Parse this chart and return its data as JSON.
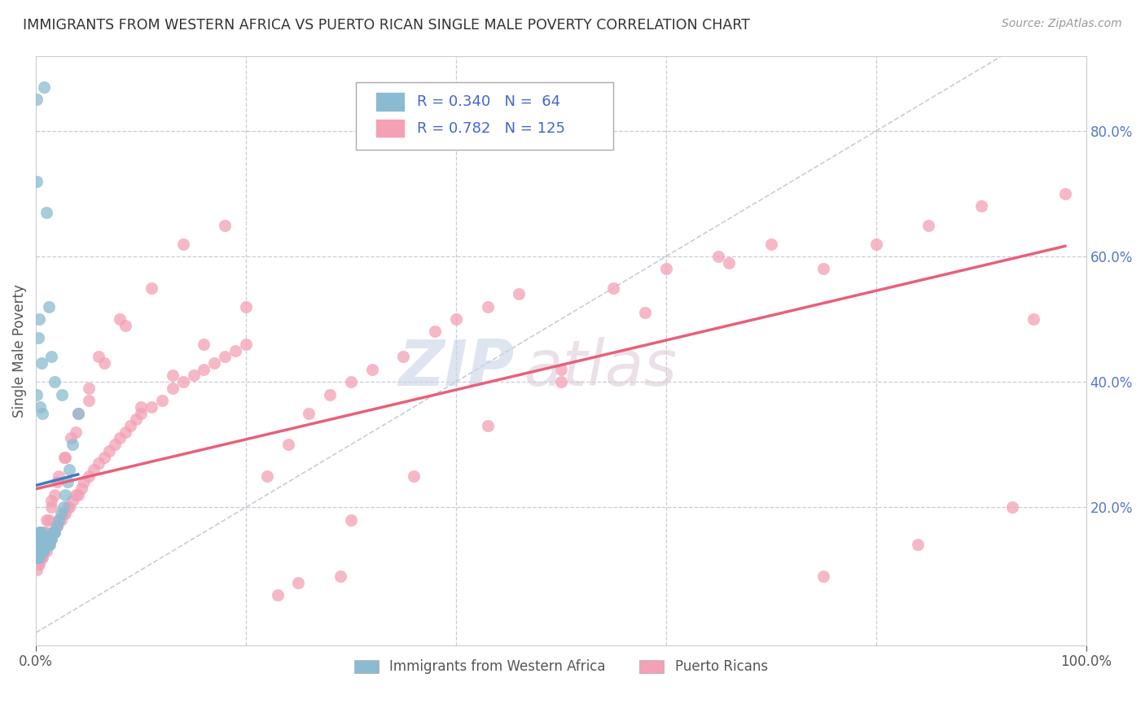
{
  "title": "IMMIGRANTS FROM WESTERN AFRICA VS PUERTO RICAN SINGLE MALE POVERTY CORRELATION CHART",
  "source": "Source: ZipAtlas.com",
  "ylabel": "Single Male Poverty",
  "xlim": [
    0,
    1.0
  ],
  "ylim": [
    -0.02,
    0.92
  ],
  "xticks": [
    0.0,
    1.0
  ],
  "xticklabels": [
    "0.0%",
    "100.0%"
  ],
  "ytick_positions": [
    0.2,
    0.4,
    0.6,
    0.8
  ],
  "ytick_labels": [
    "20.0%",
    "40.0%",
    "60.0%",
    "80.0%"
  ],
  "legend_line1": "R = 0.340   N =  64",
  "legend_line2": "R = 0.782   N = 125",
  "color_blue": "#8abcd1",
  "color_pink": "#f4a0b5",
  "color_blue_line": "#3a7fbf",
  "color_pink_line": "#e8607a",
  "color_diag": "#b0b8c8",
  "color_grid": "#c8cdd8",
  "background_color": "#ffffff",
  "watermark_zip_color": "#c8d4e8",
  "watermark_atlas_color": "#dcc8d4",
  "title_color": "#333333",
  "source_color": "#999999",
  "yaxis_label_color": "#555555",
  "ytick_color": "#5577cc",
  "xtick_color": "#555555",
  "blue_x": [
    0.001,
    0.001,
    0.001,
    0.002,
    0.002,
    0.002,
    0.002,
    0.003,
    0.003,
    0.003,
    0.003,
    0.003,
    0.004,
    0.004,
    0.004,
    0.004,
    0.005,
    0.005,
    0.005,
    0.005,
    0.006,
    0.006,
    0.006,
    0.007,
    0.007,
    0.007,
    0.008,
    0.008,
    0.009,
    0.009,
    0.01,
    0.01,
    0.011,
    0.012,
    0.012,
    0.013,
    0.014,
    0.015,
    0.016,
    0.017,
    0.018,
    0.02,
    0.022,
    0.024,
    0.026,
    0.028,
    0.03,
    0.032,
    0.035,
    0.04,
    0.001,
    0.002,
    0.003,
    0.004,
    0.005,
    0.006,
    0.008,
    0.01,
    0.012,
    0.015,
    0.018,
    0.025,
    0.001,
    0.001
  ],
  "blue_y": [
    0.12,
    0.13,
    0.14,
    0.12,
    0.13,
    0.14,
    0.15,
    0.12,
    0.13,
    0.14,
    0.15,
    0.16,
    0.13,
    0.14,
    0.15,
    0.16,
    0.13,
    0.14,
    0.15,
    0.16,
    0.13,
    0.14,
    0.15,
    0.13,
    0.14,
    0.15,
    0.14,
    0.15,
    0.14,
    0.15,
    0.14,
    0.15,
    0.15,
    0.14,
    0.15,
    0.14,
    0.15,
    0.15,
    0.16,
    0.16,
    0.16,
    0.17,
    0.18,
    0.19,
    0.2,
    0.22,
    0.24,
    0.26,
    0.3,
    0.35,
    0.38,
    0.47,
    0.5,
    0.36,
    0.43,
    0.35,
    0.87,
    0.67,
    0.52,
    0.44,
    0.4,
    0.38,
    0.85,
    0.72
  ],
  "pink_x": [
    0.001,
    0.001,
    0.002,
    0.002,
    0.003,
    0.003,
    0.004,
    0.004,
    0.005,
    0.005,
    0.006,
    0.006,
    0.007,
    0.008,
    0.008,
    0.009,
    0.01,
    0.01,
    0.011,
    0.012,
    0.013,
    0.014,
    0.015,
    0.016,
    0.017,
    0.018,
    0.019,
    0.02,
    0.022,
    0.024,
    0.026,
    0.028,
    0.03,
    0.032,
    0.035,
    0.038,
    0.04,
    0.043,
    0.046,
    0.05,
    0.055,
    0.06,
    0.065,
    0.07,
    0.075,
    0.08,
    0.085,
    0.09,
    0.095,
    0.1,
    0.11,
    0.12,
    0.13,
    0.14,
    0.15,
    0.16,
    0.17,
    0.18,
    0.19,
    0.2,
    0.22,
    0.24,
    0.26,
    0.28,
    0.3,
    0.32,
    0.35,
    0.38,
    0.4,
    0.43,
    0.46,
    0.5,
    0.55,
    0.6,
    0.65,
    0.7,
    0.75,
    0.8,
    0.85,
    0.9,
    0.95,
    0.98,
    0.003,
    0.005,
    0.007,
    0.009,
    0.012,
    0.015,
    0.018,
    0.022,
    0.027,
    0.033,
    0.04,
    0.05,
    0.06,
    0.08,
    0.1,
    0.13,
    0.16,
    0.2,
    0.25,
    0.3,
    0.36,
    0.43,
    0.5,
    0.58,
    0.66,
    0.75,
    0.84,
    0.93,
    0.004,
    0.007,
    0.01,
    0.015,
    0.02,
    0.028,
    0.038,
    0.05,
    0.065,
    0.085,
    0.11,
    0.14,
    0.18,
    0.23,
    0.29
  ],
  "pink_y": [
    0.1,
    0.12,
    0.11,
    0.13,
    0.11,
    0.13,
    0.12,
    0.14,
    0.12,
    0.14,
    0.12,
    0.14,
    0.13,
    0.13,
    0.14,
    0.14,
    0.13,
    0.15,
    0.14,
    0.14,
    0.15,
    0.15,
    0.15,
    0.16,
    0.16,
    0.16,
    0.17,
    0.17,
    0.18,
    0.18,
    0.19,
    0.19,
    0.2,
    0.2,
    0.21,
    0.22,
    0.22,
    0.23,
    0.24,
    0.25,
    0.26,
    0.27,
    0.28,
    0.29,
    0.3,
    0.31,
    0.32,
    0.33,
    0.34,
    0.35,
    0.36,
    0.37,
    0.39,
    0.4,
    0.41,
    0.42,
    0.43,
    0.44,
    0.45,
    0.46,
    0.25,
    0.3,
    0.35,
    0.38,
    0.4,
    0.42,
    0.44,
    0.48,
    0.5,
    0.52,
    0.54,
    0.4,
    0.55,
    0.58,
    0.6,
    0.62,
    0.58,
    0.62,
    0.65,
    0.68,
    0.5,
    0.7,
    0.12,
    0.14,
    0.15,
    0.16,
    0.18,
    0.2,
    0.22,
    0.25,
    0.28,
    0.31,
    0.35,
    0.39,
    0.44,
    0.5,
    0.36,
    0.41,
    0.46,
    0.52,
    0.08,
    0.18,
    0.25,
    0.33,
    0.42,
    0.51,
    0.59,
    0.09,
    0.14,
    0.2,
    0.14,
    0.16,
    0.18,
    0.21,
    0.24,
    0.28,
    0.32,
    0.37,
    0.43,
    0.49,
    0.55,
    0.62,
    0.65,
    0.06,
    0.09
  ]
}
